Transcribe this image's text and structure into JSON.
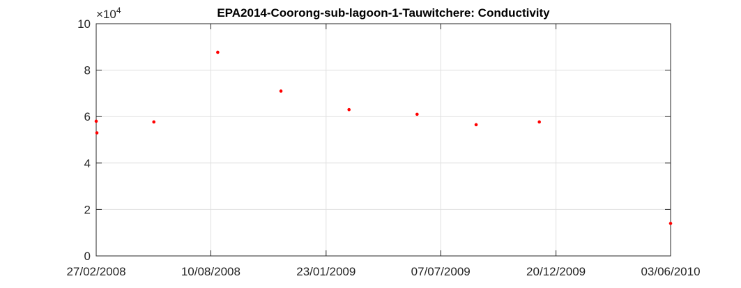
{
  "chart_data": {
    "type": "scatter",
    "title": "EPA2014-Coorong-sub-lagoon-1-Tauwitchere: Conductivity",
    "xlabel": "",
    "ylabel": "",
    "x_tick_labels": [
      "27/02/2008",
      "10/08/2008",
      "23/01/2009",
      "07/07/2009",
      "20/12/2009",
      "03/06/2010"
    ],
    "x_tick_dates": [
      "2008-02-27",
      "2008-08-10",
      "2009-01-23",
      "2009-07-07",
      "2009-12-20",
      "2010-06-03"
    ],
    "xlim": [
      "2008-02-27",
      "2010-06-03"
    ],
    "y_tick_labels": [
      "0",
      "2",
      "4",
      "6",
      "8",
      "10"
    ],
    "y_multiplier": "×10",
    "y_multiplier_exponent": "4",
    "ylim": [
      0,
      100000
    ],
    "y_ticks": [
      0,
      20000,
      40000,
      60000,
      80000,
      100000
    ],
    "grid": true,
    "marker_color": "#ff0000",
    "points": [
      {
        "x": "2008-02-27",
        "y": 58000
      },
      {
        "x": "2008-02-28",
        "y": 53000
      },
      {
        "x": "2008-05-20",
        "y": 57700
      },
      {
        "x": "2008-08-20",
        "y": 87700
      },
      {
        "x": "2008-11-19",
        "y": 71000
      },
      {
        "x": "2009-02-25",
        "y": 63000
      },
      {
        "x": "2009-06-03",
        "y": 61000
      },
      {
        "x": "2009-08-27",
        "y": 56500
      },
      {
        "x": "2009-11-26",
        "y": 57700
      },
      {
        "x": "2010-06-03",
        "y": 14000
      }
    ]
  }
}
